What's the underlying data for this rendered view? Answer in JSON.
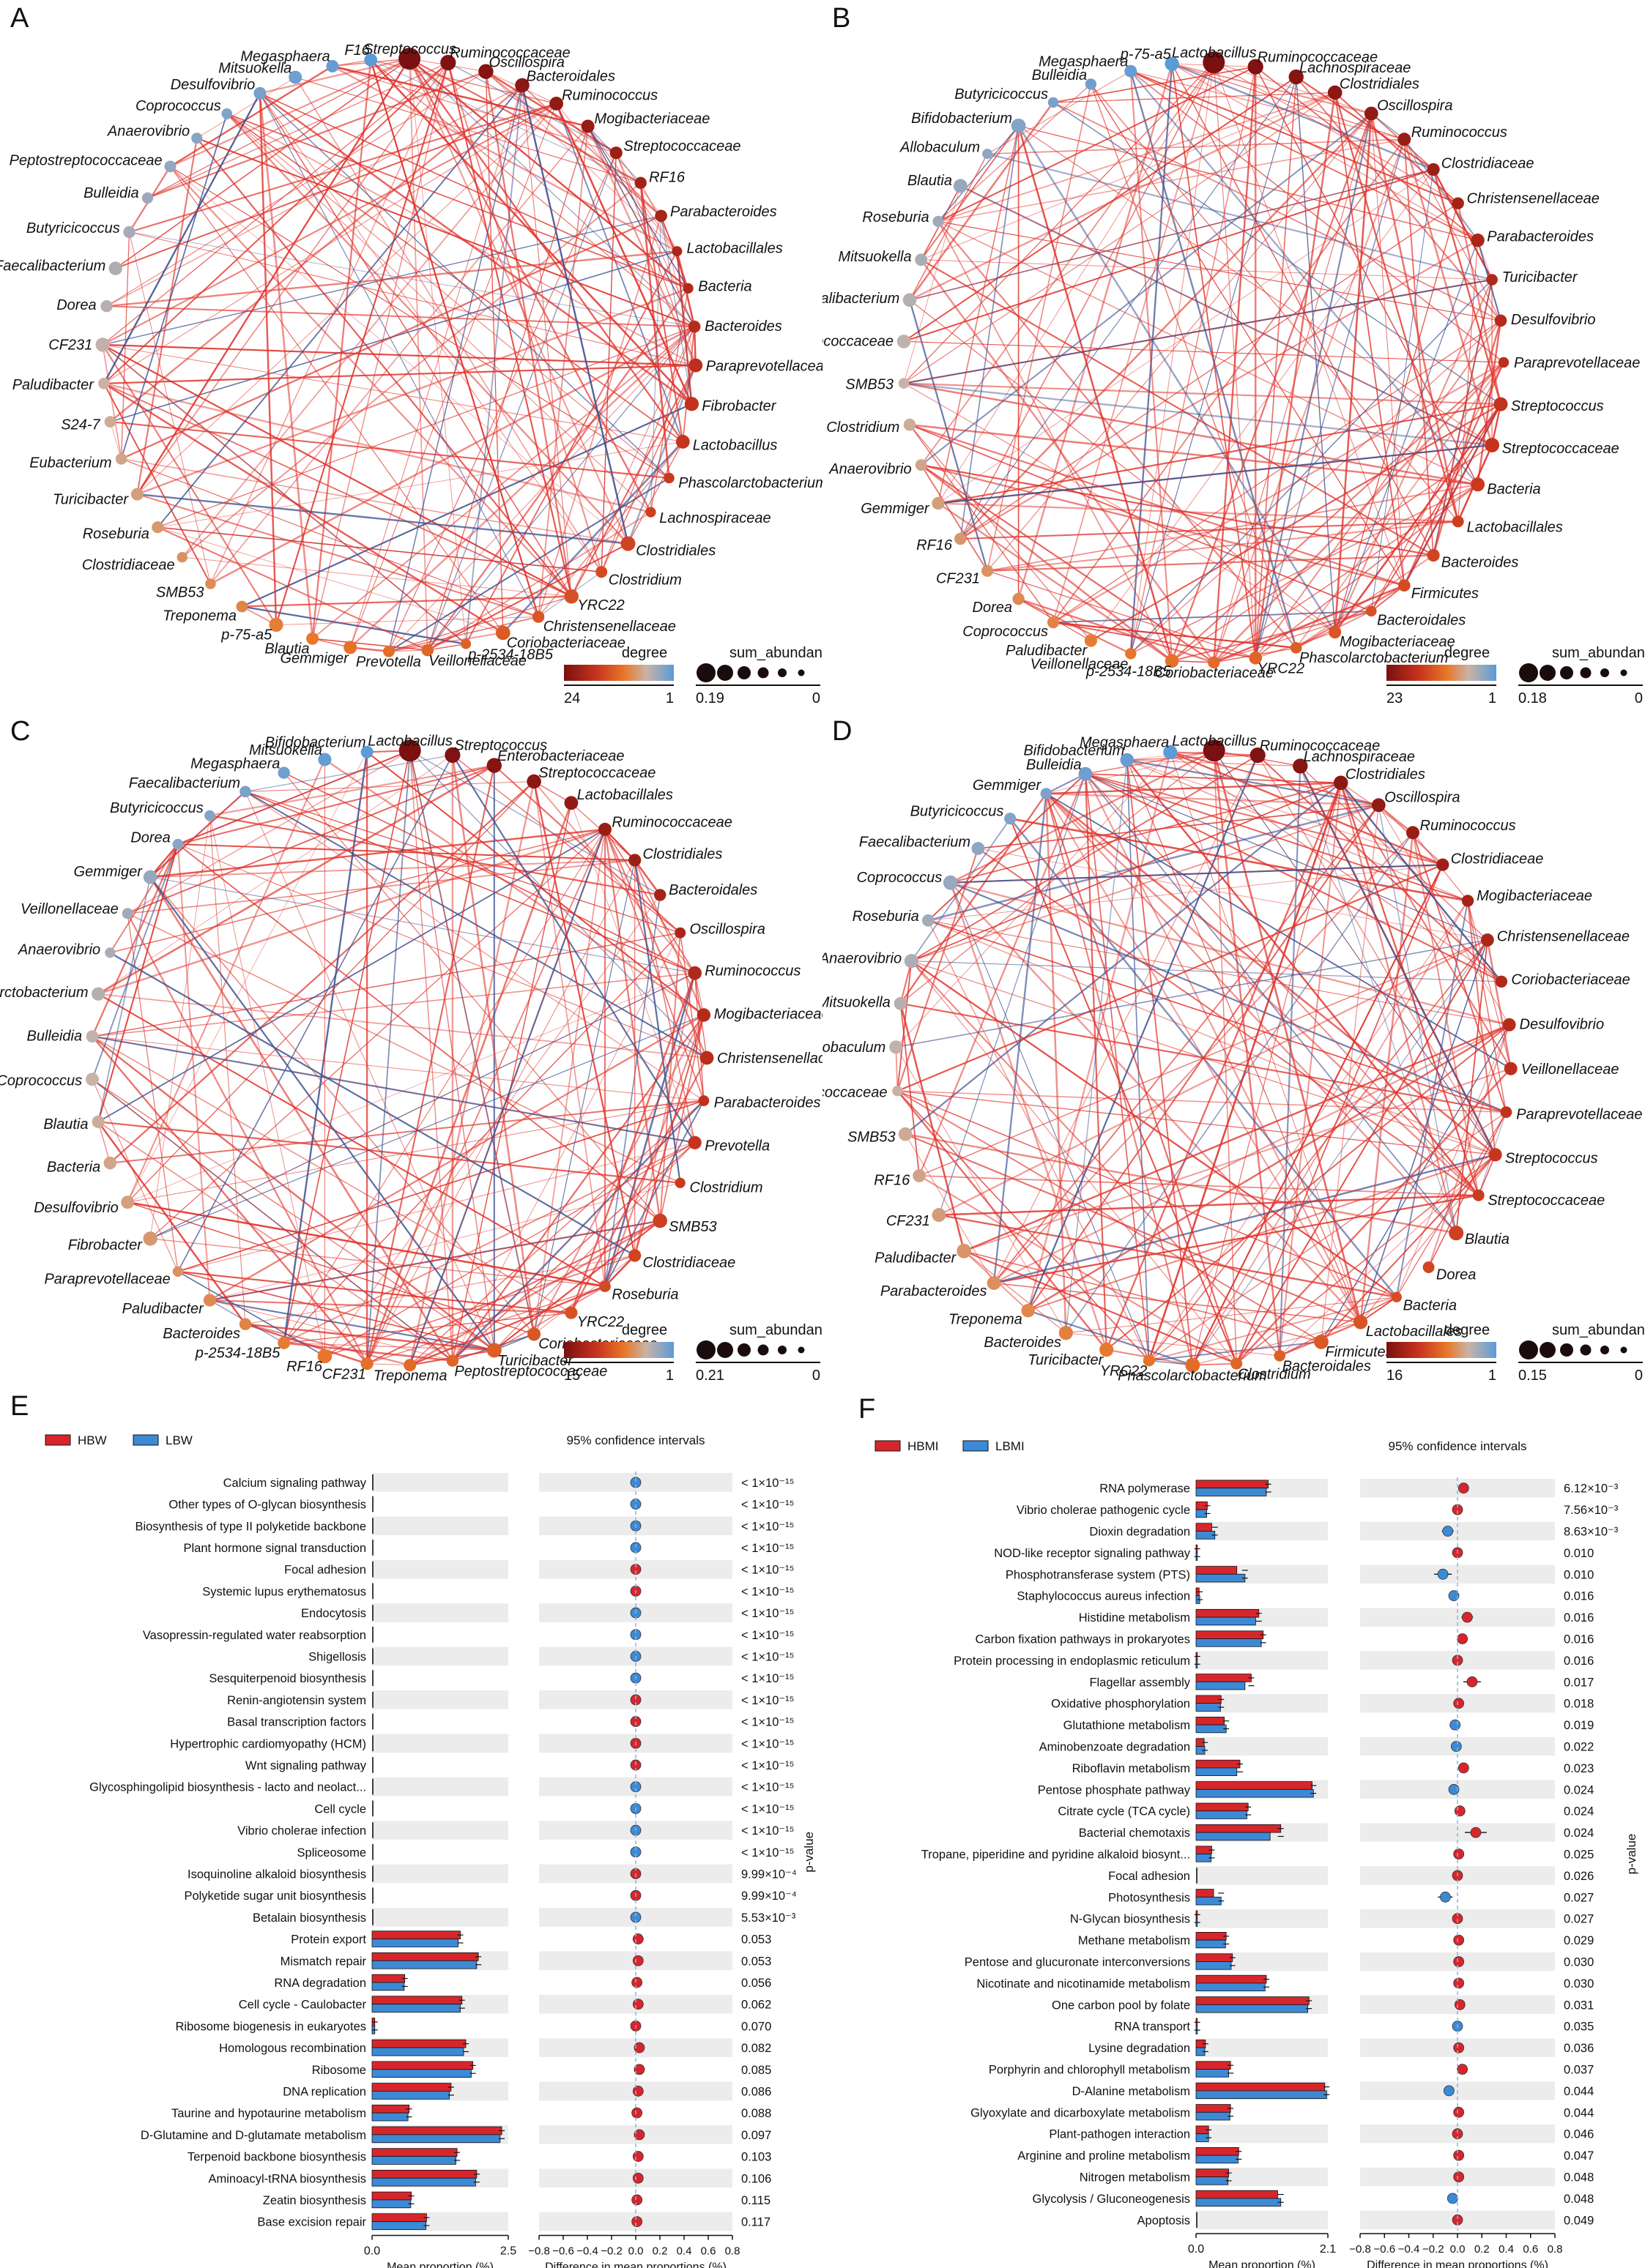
{
  "figure": {
    "panels": [
      "A",
      "B",
      "C",
      "D",
      "E",
      "F"
    ]
  },
  "networks": [
    {
      "label": "A",
      "nodes": [
        "Streptococcus",
        "Ruminococcaceae",
        "Oscillospira",
        "Bacteroidales",
        "Ruminococcus",
        "Mogibacteriaceae",
        "Streptococcaceae",
        "RF16",
        "Parabacteroides",
        "Lactobacillales",
        "Bacteria",
        "Bacteroides",
        "Paraprevotellaceae",
        "Fibrobacter",
        "Lactobacillus",
        "Phascolarctobacterium",
        "Lachnospiraceae",
        "Clostridiales",
        "Clostridium",
        "YRC22",
        "Christensenellaceae",
        "Coriobacteriaceae",
        "p-2534-18B5",
        "Veillonellaceae",
        "Prevotella",
        "Gemmiger",
        "Blautia",
        "p-75-a5",
        "Treponema",
        "SMB53",
        "Clostridiaceae",
        "Roseburia",
        "Turicibacter",
        "Eubacterium",
        "S24-7",
        "Paludibacter",
        "CF231",
        "Dorea",
        "Faecalibacterium",
        "Butyricicoccus",
        "Bulleidia",
        "Peptostreptococcaceae",
        "Anaerovibrio",
        "Coprococcus",
        "Desulfovibrio",
        "Mitsuokella",
        "Megasphaera",
        "F16"
      ],
      "legend": {
        "degree_title": "degree",
        "degree_max": "24",
        "degree_min": "1",
        "abundance_title": "sum_abundance",
        "abundance_max": "0.19",
        "abundance_min": "0"
      }
    },
    {
      "label": "B",
      "nodes": [
        "Lactobacillus",
        "Ruminococcaceae",
        "Lachnospiraceae",
        "Clostridiales",
        "Oscillospira",
        "Ruminococcus",
        "Clostridiaceae",
        "Christensenellaceae",
        "Parabacteroides",
        "Turicibacter",
        "Desulfovibrio",
        "Paraprevotellaceae",
        "Streptococcus",
        "Streptococcaceae",
        "Bacteria",
        "Lactobacillales",
        "Bacteroides",
        "Firmicutes",
        "Bacteroidales",
        "Mogibacteriaceae",
        "Phascolarctobacterium",
        "YRC22",
        "Coriobacteriaceae",
        "p-2534-18B5",
        "Veillonellaceae",
        "Paludibacter",
        "Coprococcus",
        "Dorea",
        "CF231",
        "RF16",
        "Gemmiger",
        "Anaerovibrio",
        "Clostridium",
        "SMB53",
        "Peptostreptococcaceae",
        "Faecalibacterium",
        "Mitsuokella",
        "Roseburia",
        "Blautia",
        "Allobaculum",
        "Bifidobacterium",
        "Butyricicoccus",
        "Bulleidia",
        "Megasphaera",
        "p-75-a5"
      ],
      "legend": {
        "degree_title": "degree",
        "degree_max": "23",
        "degree_min": "1",
        "abundance_title": "sum_abundance",
        "abundance_max": "0.18",
        "abundance_min": "0"
      }
    },
    {
      "label": "C",
      "nodes": [
        "Lactobacillus",
        "Streptococcus",
        "Enterobacteriaceae",
        "Streptococcaceae",
        "Lactobacillales",
        "Ruminococcaceae",
        "Clostridiales",
        "Bacteroidales",
        "Oscillospira",
        "Ruminococcus",
        "Mogibacteriaceae",
        "Christensenellaceae",
        "Parabacteroides",
        "Prevotella",
        "Clostridium",
        "SMB53",
        "Clostridiaceae",
        "Roseburia",
        "YRC22",
        "Coriobacteriaceae",
        "Turicibacter",
        "Peptostreptococcaceae",
        "Treponema",
        "CF231",
        "RF16",
        "p-2534-18B5",
        "Bacteroides",
        "Paludibacter",
        "Paraprevotellaceae",
        "Fibrobacter",
        "Desulfovibrio",
        "Bacteria",
        "Blautia",
        "Coprococcus",
        "Bulleidia",
        "Phascolarctobacterium",
        "Anaerovibrio",
        "Veillonellaceae",
        "Gemmiger",
        "Dorea",
        "Butyricicoccus",
        "Faecalibacterium",
        "Megasphaera",
        "Mitsuokella",
        "Bifidobacterium"
      ],
      "legend": {
        "degree_title": "degree",
        "degree_max": "15",
        "degree_min": "1",
        "abundance_title": "sum_abundance",
        "abundance_max": "0.21",
        "abundance_min": "0"
      }
    },
    {
      "label": "D",
      "nodes": [
        "Lactobacillus",
        "Ruminococcaceae",
        "Lachnospiraceae",
        "Clostridiales",
        "Oscillospira",
        "Ruminococcus",
        "Clostridiaceae",
        "Mogibacteriaceae",
        "Christensenellaceae",
        "Coriobacteriaceae",
        "Desulfovibrio",
        "Veillonellaceae",
        "Paraprevotellaceae",
        "Streptococcus",
        "Streptococcaceae",
        "Blautia",
        "Dorea",
        "Bacteria",
        "Lactobacillales",
        "Firmicutes",
        "Bacteroidales",
        "Clostridium",
        "Phascolarctobacterium",
        "YRC22",
        "Turicibacter",
        "Bacteroides",
        "Treponema",
        "Parabacteroides",
        "Paludibacter",
        "CF231",
        "RF16",
        "SMB53",
        "Peptostreptococcaceae",
        "Allobaculum",
        "Mitsuokella",
        "Anaerovibrio",
        "Roseburia",
        "Coprococcus",
        "Faecalibacterium",
        "Butyricicoccus",
        "Gemmiger",
        "Bulleidia",
        "Bifidobacterium",
        "Megasphaera"
      ],
      "legend": {
        "degree_title": "degree",
        "degree_max": "16",
        "degree_min": "1",
        "abundance_title": "sum_abundance",
        "abundance_max": "0.15",
        "abundance_min": "0"
      }
    }
  ],
  "chart_data": [
    {
      "label": "E",
      "type": "bar",
      "groups": [
        "HBW",
        "LBW"
      ],
      "colors": {
        "group1": "#d7262b",
        "group2": "#3c8ad6"
      },
      "ci_title": "95% confidence intervals",
      "xlabel_left": "Mean proportion (%)",
      "xlabel_right": "Difference in mean proportions (%)",
      "ylabel_right": "p-value",
      "left_xlim": [
        0,
        2.5
      ],
      "left_ticks": [
        "0.0",
        "2.5"
      ],
      "right_xlim": [
        -0.8,
        0.8
      ],
      "right_ticks": [
        "−0.8",
        "−0.6",
        "−0.4",
        "−0.2",
        "0.0",
        "0.2",
        "0.4",
        "0.6",
        "0.8"
      ],
      "rows": [
        {
          "name": "Calcium signaling pathway",
          "m1": 0,
          "m2": 0,
          "diff": 0,
          "dir": "LBW",
          "p": "< 1×10⁻¹⁵"
        },
        {
          "name": "Other types of O-glycan biosynthesis",
          "m1": 0,
          "m2": 0,
          "diff": 0,
          "dir": "LBW",
          "p": "< 1×10⁻¹⁵"
        },
        {
          "name": "Biosynthesis of type II polyketide backbone",
          "m1": 0,
          "m2": 0,
          "diff": 0,
          "dir": "LBW",
          "p": "< 1×10⁻¹⁵"
        },
        {
          "name": "Plant hormone signal transduction",
          "m1": 0,
          "m2": 0,
          "diff": 0,
          "dir": "LBW",
          "p": "< 1×10⁻¹⁵"
        },
        {
          "name": "Focal adhesion",
          "m1": 0,
          "m2": 0,
          "diff": 0,
          "dir": "HBW",
          "p": "< 1×10⁻¹⁵"
        },
        {
          "name": "Systemic lupus erythematosus",
          "m1": 0,
          "m2": 0,
          "diff": 0,
          "dir": "HBW",
          "p": "< 1×10⁻¹⁵"
        },
        {
          "name": "Endocytosis",
          "m1": 0,
          "m2": 0,
          "diff": 0,
          "dir": "LBW",
          "p": "< 1×10⁻¹⁵"
        },
        {
          "name": "Vasopressin-regulated water reabsorption",
          "m1": 0,
          "m2": 0,
          "diff": 0,
          "dir": "LBW",
          "p": "< 1×10⁻¹⁵"
        },
        {
          "name": "Shigellosis",
          "m1": 0,
          "m2": 0,
          "diff": 0,
          "dir": "LBW",
          "p": "< 1×10⁻¹⁵"
        },
        {
          "name": "Sesquiterpenoid biosynthesis",
          "m1": 0,
          "m2": 0,
          "diff": 0,
          "dir": "LBW",
          "p": "< 1×10⁻¹⁵"
        },
        {
          "name": "Renin-angiotensin system",
          "m1": 0,
          "m2": 0,
          "diff": 0,
          "dir": "HBW",
          "p": "< 1×10⁻¹⁵"
        },
        {
          "name": "Basal transcription factors",
          "m1": 0,
          "m2": 0,
          "diff": 0,
          "dir": "HBW",
          "p": "< 1×10⁻¹⁵"
        },
        {
          "name": "Hypertrophic cardiomyopathy (HCM)",
          "m1": 0,
          "m2": 0,
          "diff": 0,
          "dir": "HBW",
          "p": "< 1×10⁻¹⁵"
        },
        {
          "name": "Wnt signaling pathway",
          "m1": 0,
          "m2": 0,
          "diff": 0,
          "dir": "HBW",
          "p": "< 1×10⁻¹⁵"
        },
        {
          "name": "Glycosphingolipid biosynthesis - lacto and neolact...",
          "m1": 0,
          "m2": 0,
          "diff": 0,
          "dir": "LBW",
          "p": "< 1×10⁻¹⁵"
        },
        {
          "name": "Cell cycle",
          "m1": 0,
          "m2": 0,
          "diff": 0,
          "dir": "LBW",
          "p": "< 1×10⁻¹⁵"
        },
        {
          "name": "Vibrio cholerae infection",
          "m1": 0,
          "m2": 0,
          "diff": 0,
          "dir": "LBW",
          "p": "< 1×10⁻¹⁵"
        },
        {
          "name": "Spliceosome",
          "m1": 0,
          "m2": 0,
          "diff": 0,
          "dir": "LBW",
          "p": "< 1×10⁻¹⁵"
        },
        {
          "name": "Isoquinoline alkaloid biosynthesis",
          "m1": 0,
          "m2": 0,
          "diff": 0,
          "dir": "HBW",
          "p": "9.99×10⁻⁴"
        },
        {
          "name": "Polyketide sugar unit biosynthesis",
          "m1": 0,
          "m2": 0,
          "diff": 0,
          "dir": "HBW",
          "p": "9.99×10⁻⁴"
        },
        {
          "name": "Betalain biosynthesis",
          "m1": 0,
          "m2": 0,
          "diff": 0,
          "dir": "LBW",
          "p": "5.53×10⁻³"
        },
        {
          "name": "Protein export",
          "m1": 1.62,
          "m2": 1.58,
          "diff": 0.02,
          "dir": "HBW",
          "p": "0.053"
        },
        {
          "name": "Mismatch repair",
          "m1": 1.95,
          "m2": 1.92,
          "diff": 0.02,
          "dir": "HBW",
          "p": "0.053"
        },
        {
          "name": "RNA degradation",
          "m1": 0.6,
          "m2": 0.59,
          "diff": 0.01,
          "dir": "HBW",
          "p": "0.056"
        },
        {
          "name": "Cell cycle - Caulobacter",
          "m1": 1.65,
          "m2": 1.62,
          "diff": 0.02,
          "dir": "HBW",
          "p": "0.062"
        },
        {
          "name": "Ribosome biogenesis in eukaryotes",
          "m1": 0.05,
          "m2": 0.05,
          "diff": 0.0,
          "dir": "HBW",
          "p": "0.070"
        },
        {
          "name": "Homologous recombination",
          "m1": 1.72,
          "m2": 1.68,
          "diff": 0.03,
          "dir": "HBW",
          "p": "0.082"
        },
        {
          "name": "Ribosome",
          "m1": 1.85,
          "m2": 1.82,
          "diff": 0.03,
          "dir": "HBW",
          "p": "0.085"
        },
        {
          "name": "DNA replication",
          "m1": 1.45,
          "m2": 1.42,
          "diff": 0.02,
          "dir": "HBW",
          "p": "0.086"
        },
        {
          "name": "Taurine and hypotaurine metabolism",
          "m1": 0.68,
          "m2": 0.66,
          "diff": 0.01,
          "dir": "HBW",
          "p": "0.088"
        },
        {
          "name": "D-Glutamine and D-glutamate metabolism",
          "m1": 2.38,
          "m2": 2.35,
          "diff": 0.03,
          "dir": "HBW",
          "p": "0.097"
        },
        {
          "name": "Terpenoid backbone biosynthesis",
          "m1": 1.56,
          "m2": 1.54,
          "diff": 0.02,
          "dir": "HBW",
          "p": "0.103"
        },
        {
          "name": "Aminoacyl-tRNA biosynthesis",
          "m1": 1.92,
          "m2": 1.9,
          "diff": 0.02,
          "dir": "HBW",
          "p": "0.106"
        },
        {
          "name": "Zeatin biosynthesis",
          "m1": 0.72,
          "m2": 0.71,
          "diff": 0.01,
          "dir": "HBW",
          "p": "0.115"
        },
        {
          "name": "Base excision repair",
          "m1": 1.0,
          "m2": 0.99,
          "diff": 0.01,
          "dir": "HBW",
          "p": "0.117"
        }
      ]
    },
    {
      "label": "F",
      "type": "bar",
      "groups": [
        "HBMI",
        "LBMI"
      ],
      "colors": {
        "group1": "#d7262b",
        "group2": "#3c8ad6"
      },
      "ci_title": "95% confidence intervals",
      "xlabel_left": "Mean proportion (%)",
      "xlabel_right": "Difference in mean proportions (%)",
      "ylabel_right": "p-value",
      "left_xlim": [
        0,
        2.1
      ],
      "left_ticks": [
        "0.0",
        "2.1"
      ],
      "right_xlim": [
        -0.8,
        0.8
      ],
      "right_ticks": [
        "−0.8",
        "−0.6",
        "−0.4",
        "−0.2",
        "0.0",
        "0.2",
        "0.4",
        "0.6",
        "0.8"
      ],
      "rows": [
        {
          "name": "RNA polymerase",
          "m1": 1.15,
          "m2": 1.12,
          "diff": 0.05,
          "dir": "HBMI",
          "p": "6.12×10⁻³"
        },
        {
          "name": "Vibrio cholerae pathogenic cycle",
          "m1": 0.18,
          "m2": 0.17,
          "diff": 0.0,
          "dir": "HBMI",
          "p": "7.56×10⁻³"
        },
        {
          "name": "Dioxin degradation",
          "m1": 0.25,
          "m2": 0.3,
          "diff": -0.08,
          "dir": "LBMI",
          "p": "8.63×10⁻³"
        },
        {
          "name": "NOD-like receptor signaling pathway",
          "m1": 0.02,
          "m2": 0.02,
          "diff": 0.0,
          "dir": "HBMI",
          "p": "0.010"
        },
        {
          "name": "Phosphotransferase system (PTS)",
          "m1": 0.65,
          "m2": 0.78,
          "diff": -0.12,
          "dir": "LBMI",
          "p": "0.010"
        },
        {
          "name": "Staphylococcus aureus infection",
          "m1": 0.05,
          "m2": 0.06,
          "diff": -0.03,
          "dir": "LBMI",
          "p": "0.016"
        },
        {
          "name": "Histidine metabolism",
          "m1": 1.0,
          "m2": 0.95,
          "diff": 0.08,
          "dir": "HBMI",
          "p": "0.016"
        },
        {
          "name": "Carbon fixation pathways in prokaryotes",
          "m1": 1.07,
          "m2": 1.04,
          "diff": 0.04,
          "dir": "HBMI",
          "p": "0.016"
        },
        {
          "name": "Protein processing in endoplasmic reticulum",
          "m1": 0.02,
          "m2": 0.02,
          "diff": 0.0,
          "dir": "HBMI",
          "p": "0.016"
        },
        {
          "name": "Flagellar assembly",
          "m1": 0.88,
          "m2": 0.78,
          "diff": 0.12,
          "dir": "HBMI",
          "p": "0.017"
        },
        {
          "name": "Oxidative phosphorylation",
          "m1": 0.4,
          "m2": 0.39,
          "diff": 0.01,
          "dir": "HBMI",
          "p": "0.018"
        },
        {
          "name": "Glutathione metabolism",
          "m1": 0.45,
          "m2": 0.48,
          "diff": -0.02,
          "dir": "LBMI",
          "p": "0.019"
        },
        {
          "name": "Aminobenzoate degradation",
          "m1": 0.13,
          "m2": 0.14,
          "diff": -0.01,
          "dir": "LBMI",
          "p": "0.022"
        },
        {
          "name": "Riboflavin metabolism",
          "m1": 0.7,
          "m2": 0.65,
          "diff": 0.05,
          "dir": "HBMI",
          "p": "0.023"
        },
        {
          "name": "Pentose phosphate pathway",
          "m1": 1.85,
          "m2": 1.87,
          "diff": -0.03,
          "dir": "LBMI",
          "p": "0.024"
        },
        {
          "name": "Citrate cycle (TCA cycle)",
          "m1": 0.83,
          "m2": 0.81,
          "diff": 0.02,
          "dir": "HBMI",
          "p": "0.024"
        },
        {
          "name": "Bacterial chemotaxis",
          "m1": 1.35,
          "m2": 1.18,
          "diff": 0.15,
          "dir": "HBMI",
          "p": "0.024"
        },
        {
          "name": "Tropane, piperidine and pyridine alkaloid biosynt...",
          "m1": 0.25,
          "m2": 0.24,
          "diff": 0.01,
          "dir": "HBMI",
          "p": "0.025"
        },
        {
          "name": "Focal adhesion",
          "m1": 0.0,
          "m2": 0.0,
          "diff": 0.0,
          "dir": "HBMI",
          "p": "0.026"
        },
        {
          "name": "Photosynthesis",
          "m1": 0.28,
          "m2": 0.4,
          "diff": -0.1,
          "dir": "LBMI",
          "p": "0.027"
        },
        {
          "name": "N-Glycan biosynthesis",
          "m1": 0.02,
          "m2": 0.02,
          "diff": 0.0,
          "dir": "HBMI",
          "p": "0.027"
        },
        {
          "name": "Methane metabolism",
          "m1": 0.48,
          "m2": 0.47,
          "diff": 0.01,
          "dir": "HBMI",
          "p": "0.029"
        },
        {
          "name": "Pentose and glucuronate interconversions",
          "m1": 0.58,
          "m2": 0.56,
          "diff": 0.01,
          "dir": "HBMI",
          "p": "0.030"
        },
        {
          "name": "Nicotinate and nicotinamide metabolism",
          "m1": 1.12,
          "m2": 1.1,
          "diff": 0.01,
          "dir": "HBMI",
          "p": "0.030"
        },
        {
          "name": "One carbon pool by folate",
          "m1": 1.8,
          "m2": 1.78,
          "diff": 0.02,
          "dir": "HBMI",
          "p": "0.031"
        },
        {
          "name": "RNA transport",
          "m1": 0.02,
          "m2": 0.02,
          "diff": 0.0,
          "dir": "LBMI",
          "p": "0.035"
        },
        {
          "name": "Lysine degradation",
          "m1": 0.15,
          "m2": 0.14,
          "diff": 0.01,
          "dir": "HBMI",
          "p": "0.036"
        },
        {
          "name": "Porphyrin and chlorophyll metabolism",
          "m1": 0.55,
          "m2": 0.52,
          "diff": 0.04,
          "dir": "HBMI",
          "p": "0.037"
        },
        {
          "name": "D-Alanine metabolism",
          "m1": 2.05,
          "m2": 2.08,
          "diff": -0.07,
          "dir": "LBMI",
          "p": "0.044"
        },
        {
          "name": "Glyoxylate and dicarboxylate metabolism",
          "m1": 0.55,
          "m2": 0.54,
          "diff": 0.01,
          "dir": "HBMI",
          "p": "0.044"
        },
        {
          "name": "Plant-pathogen interaction",
          "m1": 0.2,
          "m2": 0.2,
          "diff": 0.0,
          "dir": "HBMI",
          "p": "0.046"
        },
        {
          "name": "Arginine and proline metabolism",
          "m1": 0.68,
          "m2": 0.67,
          "diff": 0.01,
          "dir": "HBMI",
          "p": "0.047"
        },
        {
          "name": "Nitrogen metabolism",
          "m1": 0.52,
          "m2": 0.51,
          "diff": 0.01,
          "dir": "HBMI",
          "p": "0.048"
        },
        {
          "name": "Glycolysis / Gluconeogenesis",
          "m1": 1.3,
          "m2": 1.35,
          "diff": -0.04,
          "dir": "LBMI",
          "p": "0.048"
        },
        {
          "name": "Apoptosis",
          "m1": 0.0,
          "m2": 0.0,
          "diff": 0.0,
          "dir": "HBMI",
          "p": "0.049"
        }
      ]
    }
  ]
}
